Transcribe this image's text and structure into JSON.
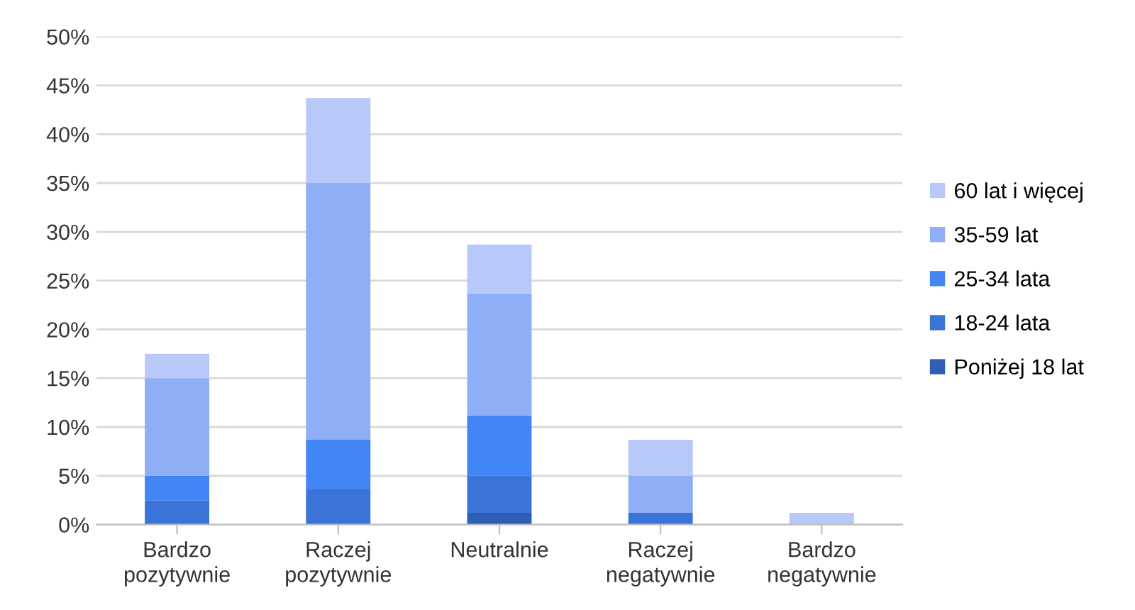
{
  "chart_data": {
    "type": "bar",
    "stacked": true,
    "categories": [
      "Bardzo\npozytywnie",
      "Raczej\npozytywnie",
      "Neutralnie",
      "Raczej\nnegatywnie",
      "Bardzo\nnegatywnie"
    ],
    "series": [
      {
        "name": "Poniżej 18 lat",
        "color": "#2f5fb5",
        "values": [
          0,
          0,
          1.2,
          0,
          0
        ]
      },
      {
        "name": "18-24 lata",
        "color": "#3a74d8",
        "values": [
          2.5,
          3.6,
          3.8,
          1.2,
          0
        ]
      },
      {
        "name": "25-34 lata",
        "color": "#4285f4",
        "values": [
          2.5,
          5.1,
          6.2,
          0,
          0
        ]
      },
      {
        "name": "35-59 lat",
        "color": "#8eaef5",
        "values": [
          10,
          26.3,
          12.5,
          3.8,
          0
        ]
      },
      {
        "name": "60 lat i więcej",
        "color": "#b8c8f8",
        "values": [
          2.5,
          8.7,
          5,
          3.7,
          1.2
        ]
      }
    ],
    "ylim": [
      0,
      50
    ],
    "yticks": [
      {
        "value": 0,
        "label": "0%"
      },
      {
        "value": 5,
        "label": "5%"
      },
      {
        "value": 10,
        "label": "10%"
      },
      {
        "value": 15,
        "label": "15%"
      },
      {
        "value": 20,
        "label": "20%"
      },
      {
        "value": 25,
        "label": "25%"
      },
      {
        "value": 30,
        "label": "30%"
      },
      {
        "value": 35,
        "label": "35%"
      },
      {
        "value": 40,
        "label": "40%"
      },
      {
        "value": 45,
        "label": "45%"
      },
      {
        "value": 50,
        "label": "50%"
      }
    ],
    "grid": "y",
    "legend": "right"
  }
}
